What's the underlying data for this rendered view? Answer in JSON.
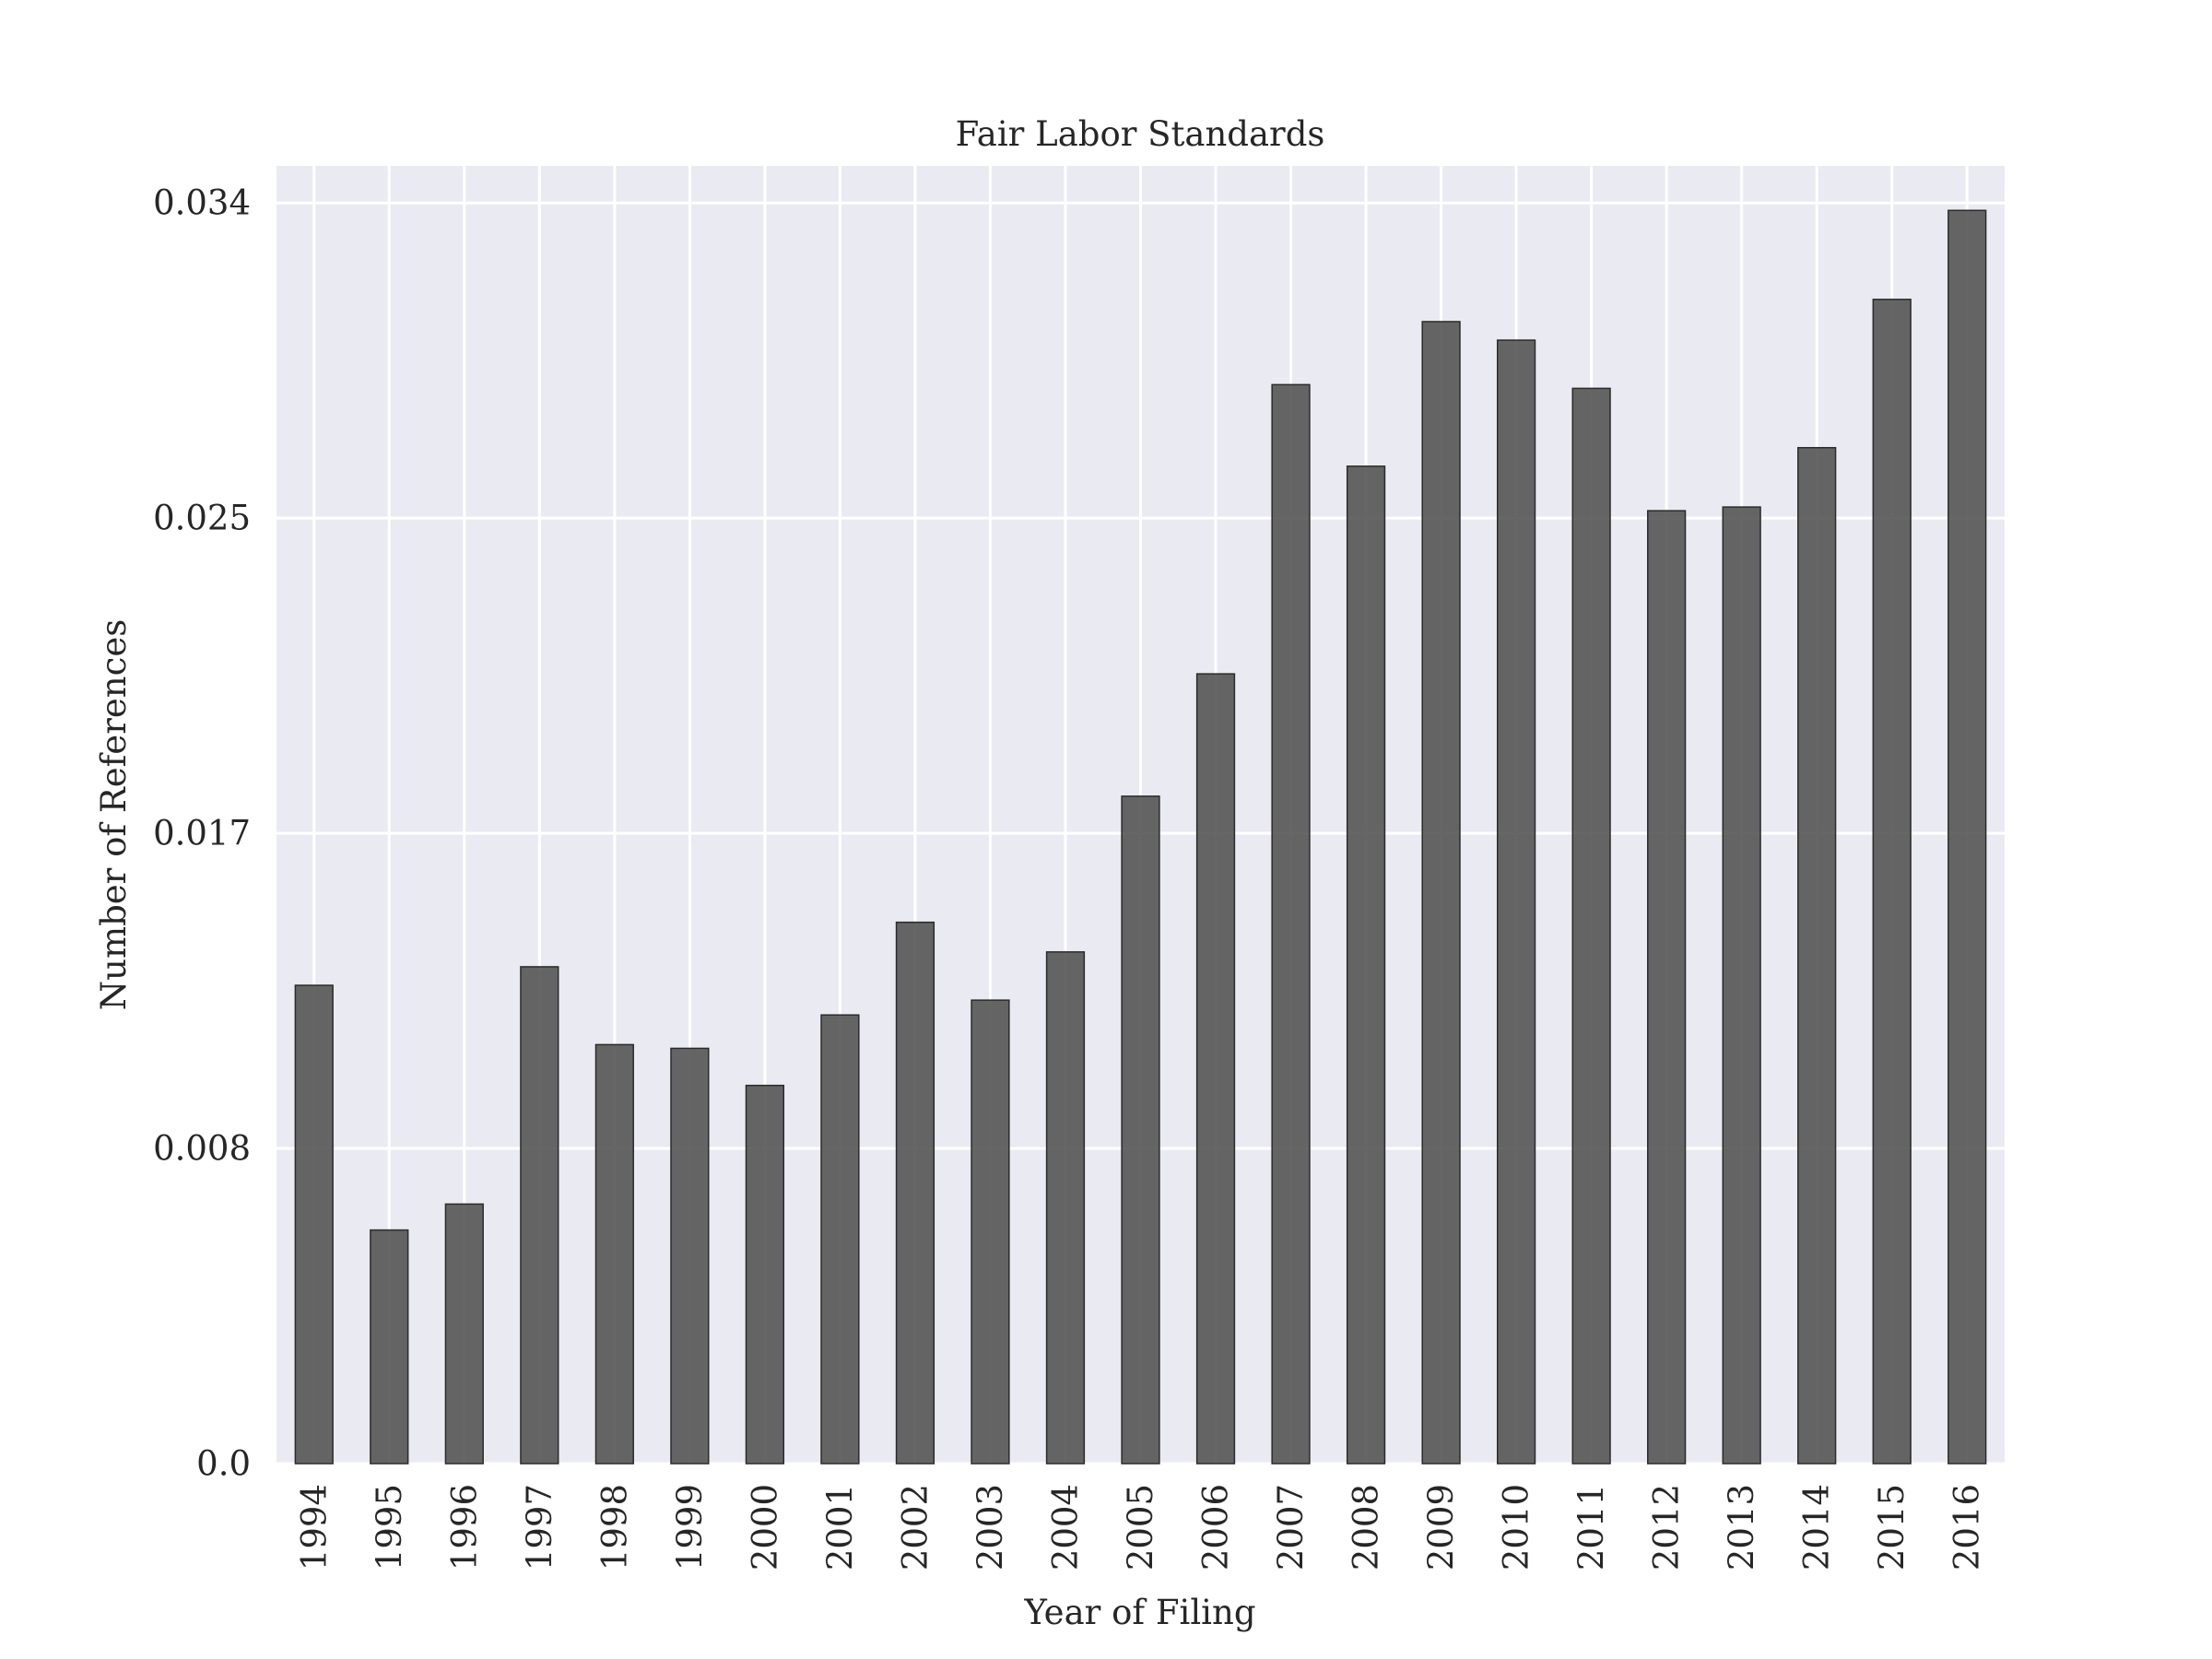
{
  "chart_data": {
    "type": "bar",
    "title": "Fair Labor Standards",
    "xlabel": "Year of Filing",
    "ylabel": "Number of References",
    "categories": [
      "1994",
      "1995",
      "1996",
      "1997",
      "1998",
      "1999",
      "2000",
      "2001",
      "2002",
      "2003",
      "2004",
      "2005",
      "2006",
      "2007",
      "2008",
      "2009",
      "2010",
      "2011",
      "2012",
      "2013",
      "2014",
      "2015",
      "2016"
    ],
    "values": [
      0.0129,
      0.0063,
      0.007,
      0.0134,
      0.0113,
      0.0112,
      0.0102,
      0.0121,
      0.0146,
      0.0125,
      0.0138,
      0.018,
      0.0213,
      0.0291,
      0.0269,
      0.0308,
      0.0303,
      0.029,
      0.0257,
      0.0258,
      0.0274,
      0.0314,
      0.0338
    ],
    "yticks": [
      "0.0",
      "0.008",
      "0.017",
      "0.025",
      "0.034"
    ],
    "ytick_values": [
      0,
      0.0085,
      0.017,
      0.0255,
      0.034
    ],
    "ylim": [
      0,
      0.035
    ],
    "grid": true,
    "bar_color": "#555555",
    "background_color": "#EAEAF2",
    "grid_color": "#FFFFFF"
  }
}
